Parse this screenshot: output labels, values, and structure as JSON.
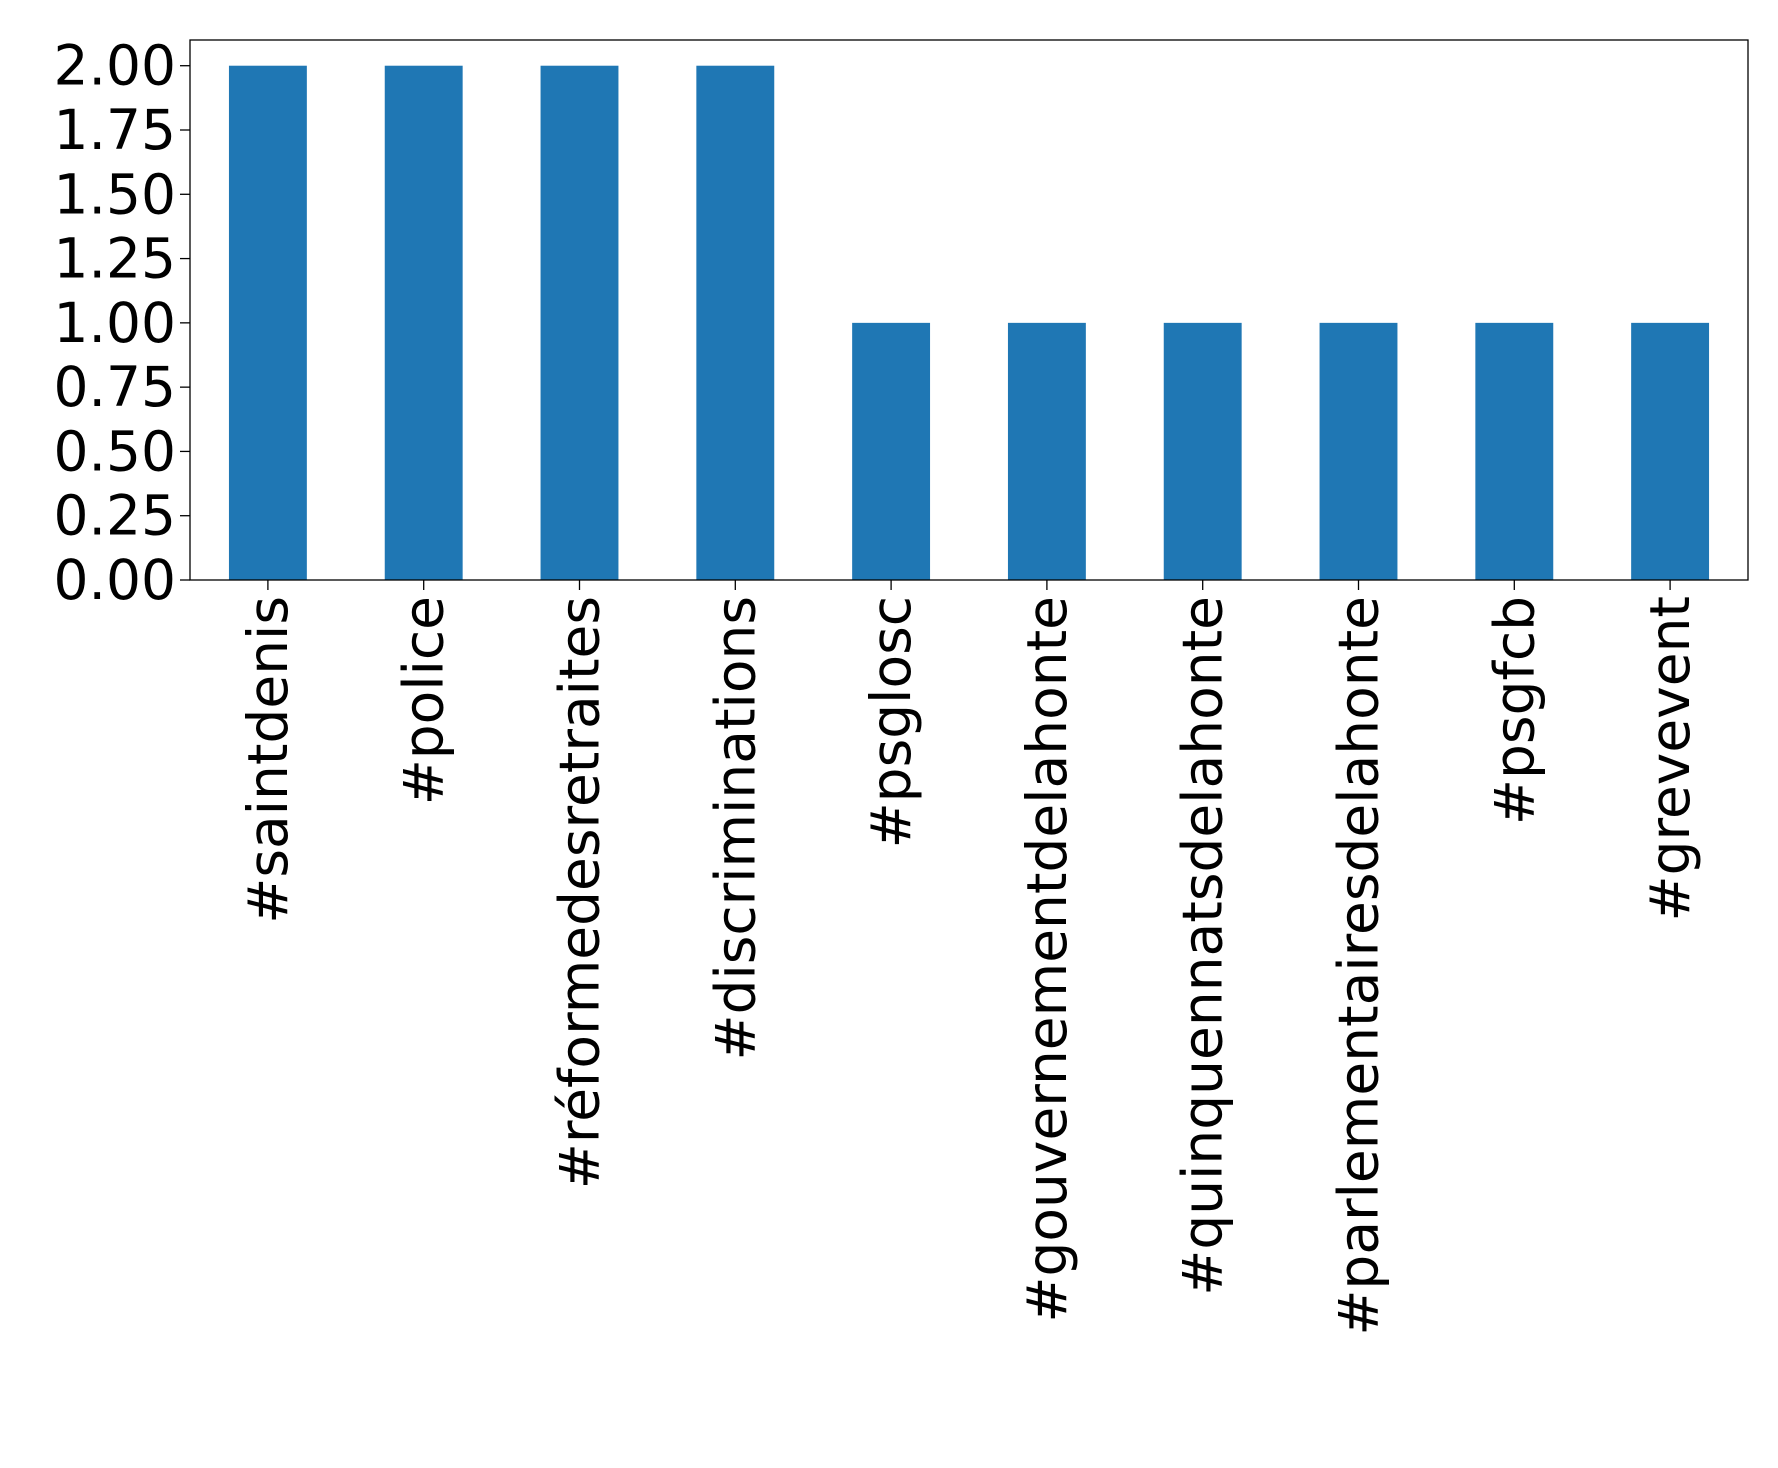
{
  "chart_data": {
    "type": "bar",
    "categories": [
      "#saintdenis",
      "#police",
      "#réformedesretraites",
      "#discriminations",
      "#psglosc",
      "#gouvernementdelahonte",
      "#quinquennatsdelahonte",
      "#parlementairesdelahonte",
      "#psgfcb",
      "#grevevent"
    ],
    "values": [
      2,
      2,
      2,
      2,
      1,
      1,
      1,
      1,
      1,
      1
    ],
    "title": "",
    "xlabel": "",
    "ylabel": "",
    "ylim": [
      0,
      2.1
    ],
    "yticks": [
      "0.00",
      "0.25",
      "0.50",
      "0.75",
      "1.00",
      "1.25",
      "1.50",
      "1.75",
      "2.00"
    ],
    "grid": false,
    "bar_color": "#1f77b4"
  }
}
